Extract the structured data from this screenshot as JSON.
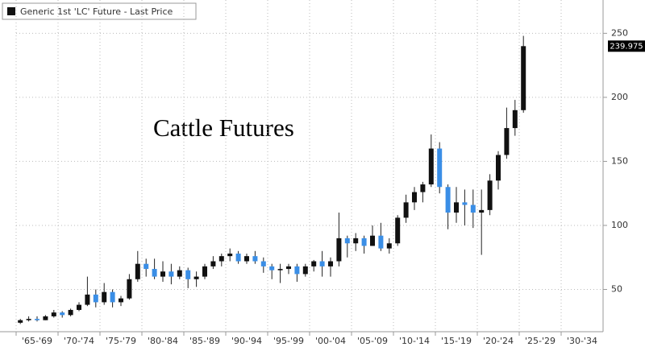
{
  "chart_data": {
    "type": "candlestick",
    "title": "Cattle Futures",
    "legend": "Generic 1st 'LC' Future - Last Price",
    "up_color": "#111111",
    "down_color": "#3a8ee6",
    "xlim": [
      1965,
      2035
    ],
    "xticks": [
      {
        "value": 1967.5,
        "label": "'65-'69"
      },
      {
        "value": 1972.5,
        "label": "'70-'74"
      },
      {
        "value": 1977.5,
        "label": "'75-'79"
      },
      {
        "value": 1982.5,
        "label": "'80-'84"
      },
      {
        "value": 1987.5,
        "label": "'85-'89"
      },
      {
        "value": 1992.5,
        "label": "'90-'94"
      },
      {
        "value": 1997.5,
        "label": "'95-'99"
      },
      {
        "value": 2002.5,
        "label": "'00-'04"
      },
      {
        "value": 2007.5,
        "label": "'05-'09"
      },
      {
        "value": 2012.5,
        "label": "'10-'14"
      },
      {
        "value": 2017.5,
        "label": "'15-'19"
      },
      {
        "value": 2022.5,
        "label": "'20-'24"
      },
      {
        "value": 2027.5,
        "label": "'25-'29"
      },
      {
        "value": 2032.5,
        "label": "'30-'34"
      }
    ],
    "ylim": [
      17,
      276
    ],
    "yticks": [
      50,
      100,
      150,
      200,
      250
    ],
    "grid": true,
    "x": [
      1965,
      1966,
      1967,
      1968,
      1969,
      1970,
      1971,
      1972,
      1973,
      1974,
      1975,
      1976,
      1977,
      1978,
      1979,
      1980,
      1981,
      1982,
      1983,
      1984,
      1985,
      1986,
      1987,
      1988,
      1989,
      1990,
      1991,
      1992,
      1993,
      1994,
      1995,
      1996,
      1997,
      1998,
      1999,
      2000,
      2001,
      2002,
      2003,
      2004,
      2005,
      2006,
      2007,
      2008,
      2009,
      2010,
      2011,
      2012,
      2013,
      2014,
      2015,
      2016,
      2017,
      2018,
      2019,
      2020,
      2021,
      2022,
      2023,
      2024,
      2025
    ],
    "open": [
      24,
      26,
      27,
      26,
      29,
      32,
      30,
      34,
      38,
      46,
      40,
      48,
      40,
      43,
      58,
      70,
      66,
      60,
      64,
      60,
      65,
      58,
      60,
      68,
      72,
      76,
      78,
      72,
      76,
      72,
      68,
      65,
      66,
      68,
      62,
      68,
      72,
      68,
      72,
      90,
      86,
      90,
      84,
      92,
      82,
      86,
      106,
      118,
      126,
      132,
      160,
      130,
      110,
      118,
      116,
      110,
      112,
      135,
      155,
      176,
      190
    ],
    "high": [
      27,
      29,
      29,
      30,
      34,
      33,
      35,
      40,
      60,
      50,
      55,
      50,
      45,
      62,
      80,
      74,
      74,
      72,
      70,
      68,
      67,
      64,
      70,
      76,
      78,
      82,
      80,
      78,
      80,
      75,
      70,
      70,
      70,
      70,
      70,
      73,
      80,
      75,
      110,
      92,
      94,
      92,
      100,
      102,
      90,
      108,
      124,
      130,
      134,
      171,
      165,
      132,
      130,
      128,
      128,
      128,
      140,
      158,
      192,
      198,
      248
    ],
    "low": [
      23,
      25,
      25,
      26,
      28,
      28,
      29,
      33,
      37,
      36,
      38,
      36,
      37,
      42,
      56,
      60,
      58,
      56,
      54,
      58,
      51,
      52,
      58,
      66,
      68,
      72,
      70,
      70,
      70,
      63,
      58,
      55,
      62,
      56,
      60,
      64,
      60,
      60,
      68,
      75,
      80,
      78,
      84,
      80,
      78,
      84,
      102,
      112,
      118,
      130,
      125,
      97,
      102,
      100,
      98,
      77,
      108,
      128,
      152,
      170,
      188
    ],
    "close": [
      26,
      27,
      26,
      29,
      32,
      30,
      34,
      38,
      46,
      40,
      48,
      40,
      43,
      58,
      70,
      66,
      60,
      64,
      60,
      65,
      58,
      60,
      68,
      72,
      76,
      78,
      72,
      76,
      72,
      68,
      65,
      66,
      68,
      62,
      68,
      72,
      68,
      72,
      90,
      86,
      90,
      84,
      92,
      82,
      86,
      106,
      118,
      126,
      132,
      160,
      130,
      110,
      118,
      116,
      110,
      112,
      135,
      155,
      176,
      190,
      239.975
    ]
  }
}
